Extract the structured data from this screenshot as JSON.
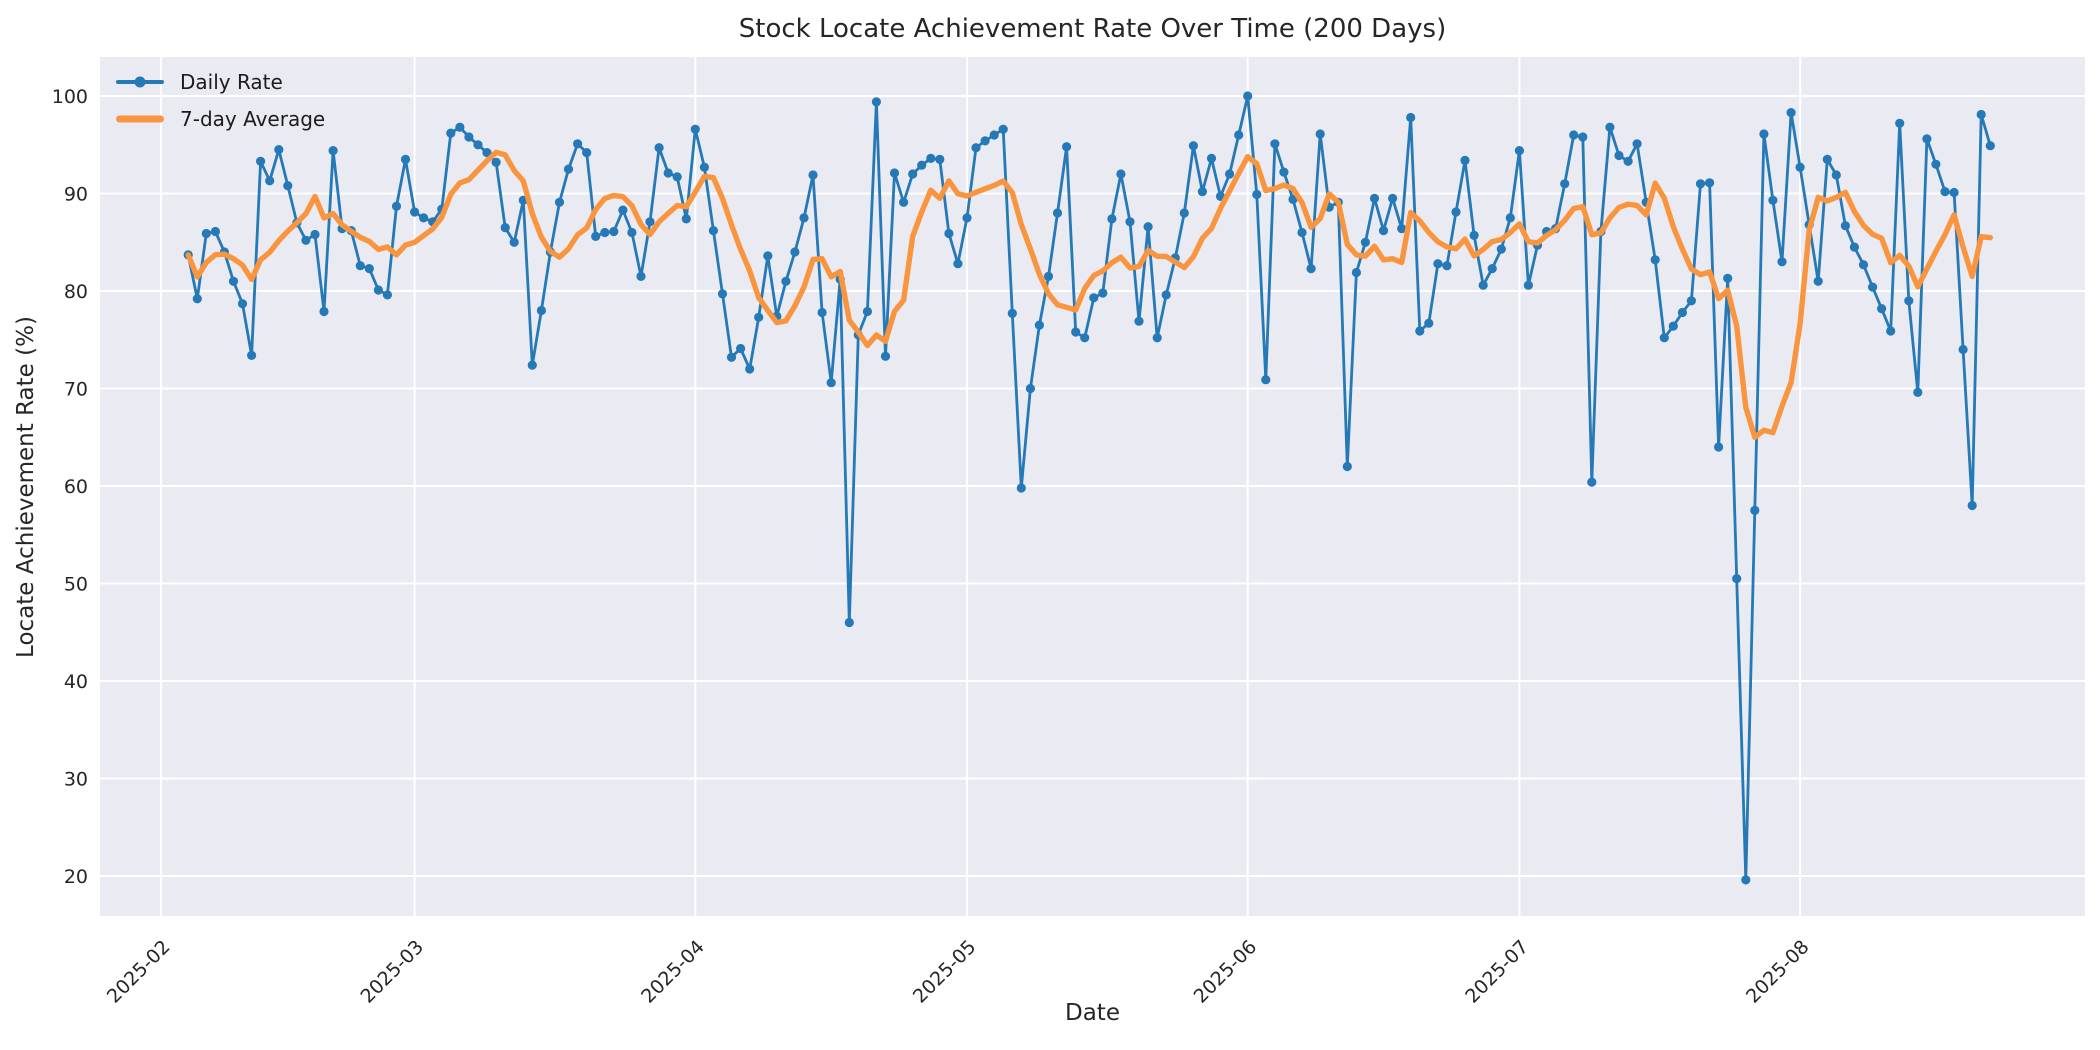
{
  "chart": {
    "title": "Stock Locate Achievement Rate Over Time (200 Days)",
    "xlabel": "Date",
    "ylabel": "Locate Achievement Rate (%)",
    "colors": {
      "daily": "#2479b6",
      "average": "#f9953f",
      "plot_background": "#eaeaf2",
      "grid": "#ffffff",
      "text": "#262626"
    },
    "legend": {
      "position": "upper left",
      "items": [
        {
          "label": "Daily Rate"
        },
        {
          "label": "7-day Average"
        }
      ]
    }
  },
  "chart_data": {
    "type": "line",
    "title": "Stock Locate Achievement Rate Over Time (200 Days)",
    "xlabel": "Date",
    "ylabel": "Locate Achievement Rate (%)",
    "grid": true,
    "legend_position": "upper left",
    "n_days": 200,
    "x_start": "2025-02-04",
    "x_step_days": 1,
    "ylim": [
      15.9,
      104.0
    ],
    "xlim_days": [
      -9.74,
      209.46
    ],
    "y_ticks": [
      20,
      30,
      40,
      50,
      60,
      70,
      80,
      90,
      100
    ],
    "x_ticks": [
      {
        "label": "2025-02",
        "day_offset": -3
      },
      {
        "label": "2025-03",
        "day_offset": 25
      },
      {
        "label": "2025-04",
        "day_offset": 56
      },
      {
        "label": "2025-05",
        "day_offset": 86
      },
      {
        "label": "2025-06",
        "day_offset": 117
      },
      {
        "label": "2025-07",
        "day_offset": 147
      },
      {
        "label": "2025-08",
        "day_offset": 178
      }
    ],
    "series": [
      {
        "name": "Daily Rate",
        "type": "line+markers",
        "values": [
          83.7,
          79.2,
          85.9,
          86.1,
          84.0,
          81.0,
          78.7,
          73.4,
          93.3,
          91.3,
          94.5,
          90.8,
          87.0,
          85.2,
          85.8,
          77.9,
          94.4,
          86.4,
          86.2,
          82.6,
          82.3,
          80.1,
          79.6,
          88.7,
          93.5,
          88.1,
          87.5,
          87.1,
          88.4,
          96.2,
          96.8,
          95.8,
          95.0,
          94.2,
          93.2,
          86.5,
          85.0,
          89.3,
          72.4,
          78.0,
          84.0,
          89.1,
          92.5,
          95.1,
          94.2,
          85.6,
          86.0,
          86.1,
          88.3,
          86.0,
          81.5,
          87.1,
          94.7,
          92.1,
          91.7,
          87.4,
          96.6,
          92.7,
          86.2,
          79.7,
          73.2,
          74.1,
          72.0,
          77.3,
          83.6,
          77.4,
          81.0,
          84.0,
          87.5,
          91.9,
          77.8,
          70.6,
          81.2,
          46.0,
          75.5,
          77.9,
          99.4,
          73.3,
          92.1,
          89.1,
          92.0,
          92.9,
          93.6,
          93.5,
          85.9,
          82.8,
          87.5,
          94.7,
          95.4,
          96.0,
          96.6,
          77.7,
          59.8,
          70.0,
          76.5,
          81.5,
          88.0,
          94.8,
          75.8,
          75.2,
          79.3,
          79.8,
          87.4,
          92.0,
          87.1,
          76.9,
          86.6,
          75.2,
          79.6,
          83.4,
          88.0,
          94.9,
          90.2,
          93.6,
          89.7,
          92.0,
          96.0,
          100.0,
          89.9,
          70.9,
          95.1,
          92.2,
          89.4,
          86.0,
          82.3,
          96.1,
          88.6,
          89.1,
          62.0,
          81.9,
          85.0,
          89.5,
          86.2,
          89.5,
          86.4,
          97.8,
          75.9,
          76.7,
          82.8,
          82.6,
          88.1,
          93.4,
          85.7,
          80.6,
          82.3,
          84.3,
          87.5,
          94.4,
          80.6,
          84.7,
          86.1,
          86.4,
          91.0,
          96.0,
          95.8,
          60.4,
          86.1,
          96.8,
          93.9,
          93.3,
          95.1,
          89.1,
          83.2,
          75.2,
          76.4,
          77.8,
          79.0,
          91.0,
          91.1,
          64.0,
          81.3,
          50.5,
          19.6,
          57.5,
          96.1,
          89.3,
          83.0,
          98.3,
          92.7,
          86.8,
          81.0,
          93.5,
          91.9,
          86.7,
          84.5,
          82.7,
          80.4,
          78.2,
          75.9,
          97.2,
          79.0,
          69.6,
          95.6,
          93.0,
          90.2,
          90.1,
          74.0,
          58.0,
          98.1,
          94.9
        ]
      },
      {
        "name": "7-day Average",
        "type": "line",
        "derived": "rolling_mean",
        "window": 7,
        "min_periods": 1
      }
    ]
  }
}
